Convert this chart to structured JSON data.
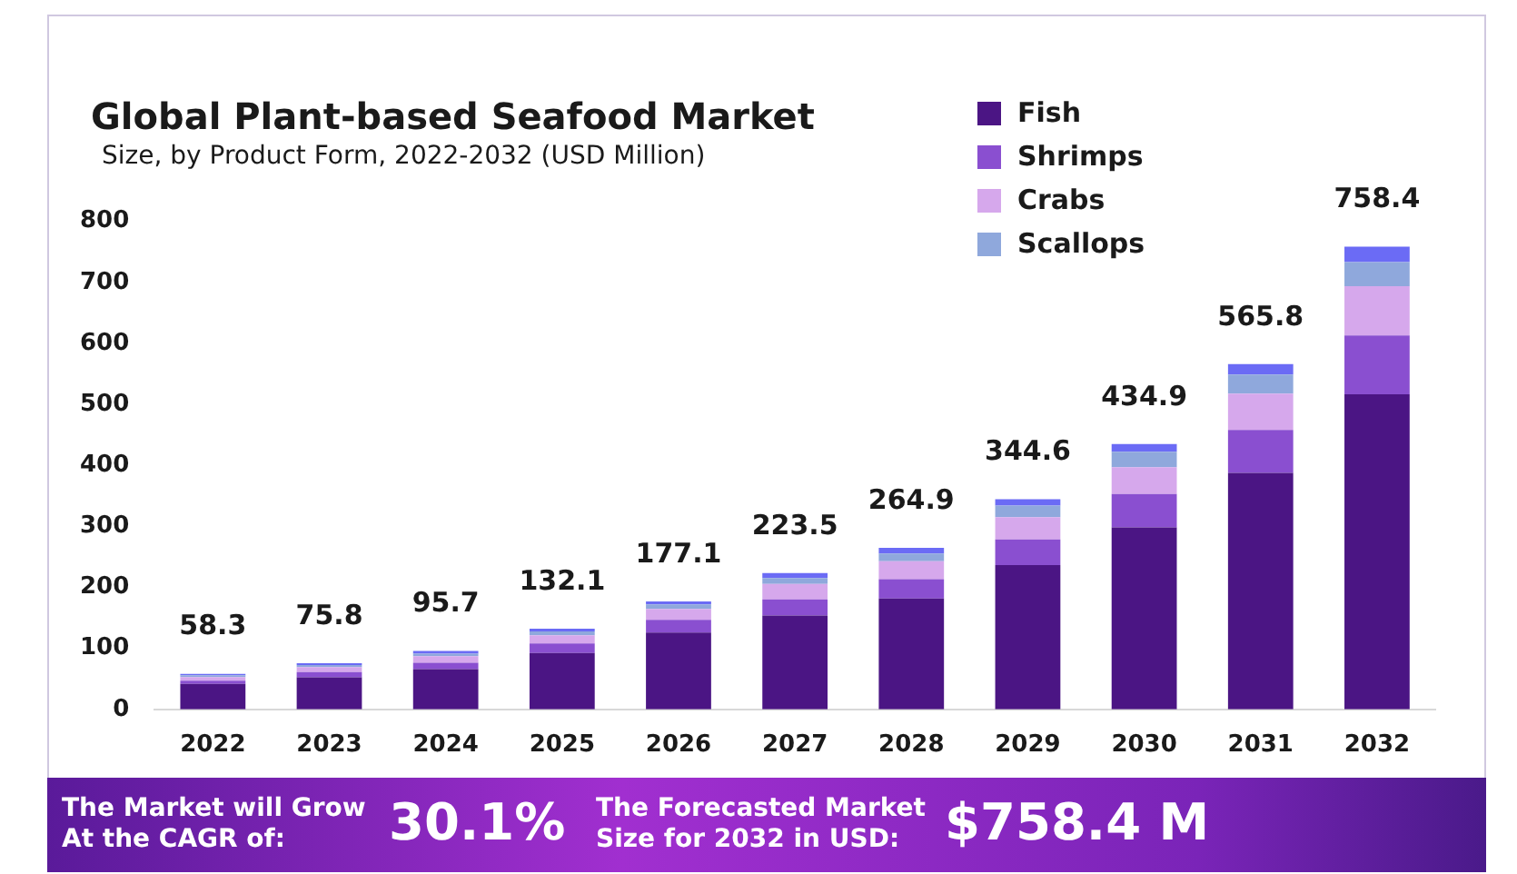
{
  "chart_data": {
    "type": "bar",
    "title": "Global Plant-based Seafood Market",
    "subtitle": "Size, by Product Form, 2022-2032 (USD Million)",
    "categories": [
      "2022",
      "2023",
      "2024",
      "2025",
      "2026",
      "2027",
      "2028",
      "2029",
      "2030",
      "2031",
      "2032"
    ],
    "series": [
      {
        "name": "Fish",
        "color": "#4b1584",
        "values": [
          41.6,
          52.6,
          65.9,
          92.3,
          125.8,
          153.9,
          181.9,
          236.4,
          298.3,
          387.7,
          516.4
        ]
      },
      {
        "name": "Shrimps",
        "color": "#8a4fd0",
        "values": [
          5.2,
          8.4,
          10.6,
          15.7,
          21.0,
          26.4,
          31.5,
          42.0,
          54.6,
          70.2,
          96.4
        ]
      },
      {
        "name": "Crabs",
        "color": "#d6a8ec",
        "values": [
          6.2,
          8.4,
          10.6,
          13.6,
          17.8,
          25.3,
          29.4,
          36.8,
          44.1,
          59.7,
          80.7
        ]
      },
      {
        "name": "Scallops",
        "color": "#8fa8dc",
        "values": [
          3.1,
          3.2,
          4.3,
          6.3,
          7.3,
          9.5,
          12.6,
          18.9,
          25.2,
          31.4,
          39.8
        ]
      },
      {
        "color": "#6b6bf5",
        "values": [
          2.2,
          3.2,
          4.3,
          4.2,
          5.2,
          8.4,
          9.5,
          10.5,
          12.7,
          16.8,
          25.1
        ]
      }
    ],
    "stacked": true,
    "totals": [
      "58.3",
      "75.8",
      "95.7",
      "132.1",
      "177.1",
      "223.5",
      "264.9",
      "344.6",
      "434.9",
      "565.8",
      "758.4"
    ],
    "ylim": [
      0,
      800
    ],
    "yticks": [
      0,
      100,
      200,
      300,
      400,
      500,
      600,
      700,
      800
    ],
    "grid": false,
    "legend": "top right",
    "annotations": [
      "The Market will Grow At the CAGR of:",
      "30.1%",
      "The Forecasted Market Size for 2032 in USD:",
      "$758.4 M"
    ]
  }
}
